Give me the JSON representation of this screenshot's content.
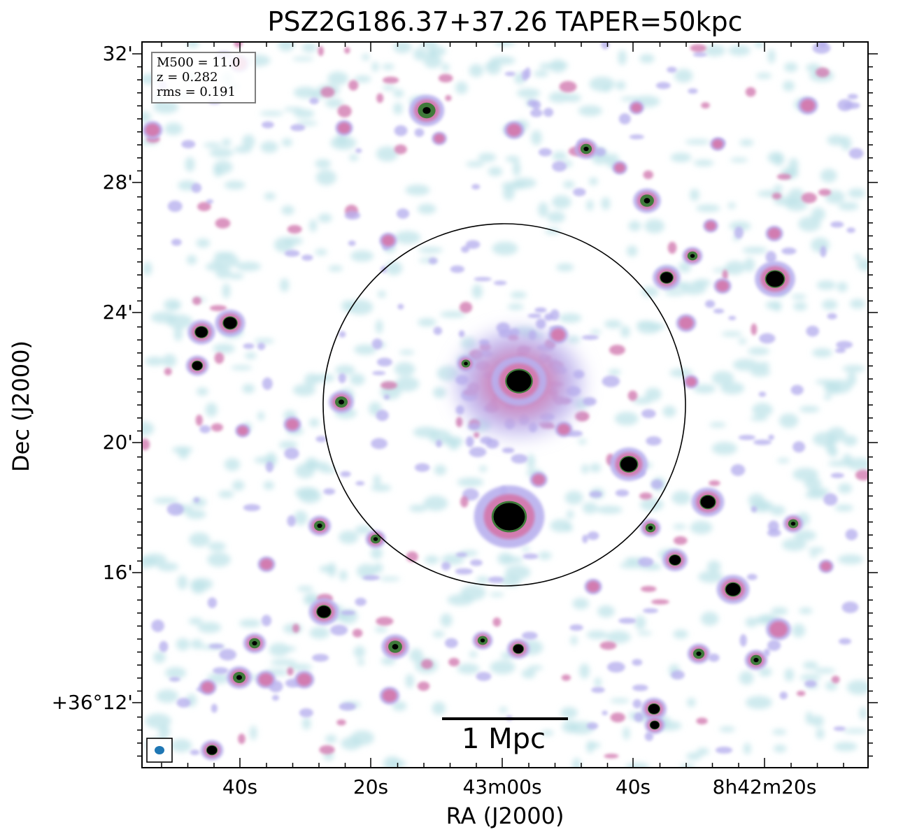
{
  "title": "PSZ2G186.37+37.26 TAPER=50kpc",
  "axes": {
    "x_title": "RA (J2000)",
    "y_title": "Dec (J2000)",
    "x_ticks": [
      "40s",
      "20s",
      "43m00s",
      "40s",
      "8h42m20s"
    ],
    "y_ticks": [
      "32'",
      "28'",
      "24'",
      "20'",
      "16'",
      "+36°12'"
    ]
  },
  "info": {
    "m500": "M500 = 11.0",
    "z": "z = 0.282",
    "rms": "rms = 0.191"
  },
  "scalebar": {
    "label": "1 Mpc"
  },
  "colors": {
    "background": "#ffffff",
    "faint_emission": "#bfe3e8",
    "low_emission": "#b8b0ee",
    "mid_emission": "#d27bb0",
    "high_emission": "#3f7a3a",
    "peak_emission": "#000000",
    "beam": "#1f77b4"
  }
}
